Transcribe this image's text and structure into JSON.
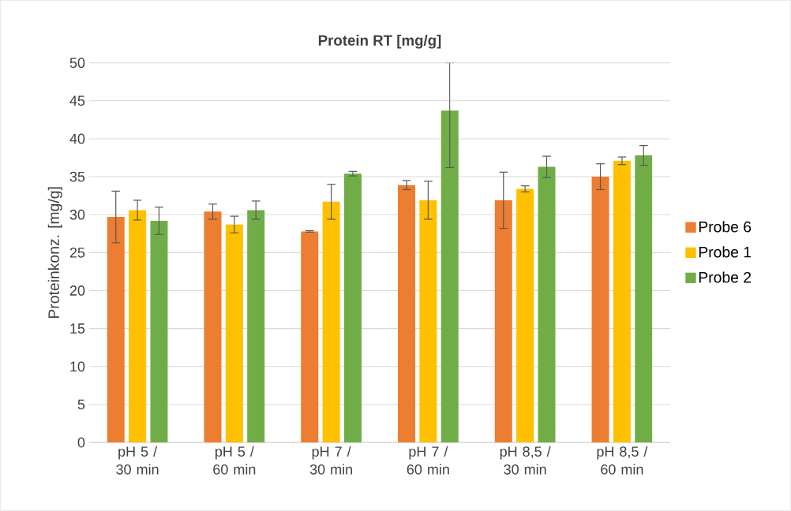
{
  "chart_data": {
    "type": "bar",
    "title": "Protein RT [mg/g]",
    "ylabel": "Proteinkonz. [mg/g]",
    "categories": [
      "pH 5 / 30 min",
      "pH 5 / 60 min",
      "pH 7 / 30 min",
      "pH 7 / 60 min",
      "pH 8,5 / 30 min",
      "pH 8,5 / 60 min"
    ],
    "series": [
      {
        "name": "Probe 6",
        "color": "#ed7d31",
        "values": [
          29.7,
          30.4,
          27.8,
          33.9,
          31.9,
          35.0
        ],
        "errors": [
          3.4,
          1.0,
          0.1,
          0.6,
          3.7,
          1.7
        ]
      },
      {
        "name": "Probe 1",
        "color": "#ffc000",
        "values": [
          30.6,
          28.7,
          31.7,
          31.9,
          33.4,
          37.1
        ],
        "errors": [
          1.3,
          1.1,
          2.3,
          2.5,
          0.4,
          0.5
        ]
      },
      {
        "name": "Probe 2",
        "color": "#70ad47",
        "values": [
          29.2,
          30.6,
          35.4,
          43.7,
          36.3,
          37.8
        ],
        "errors": [
          1.8,
          1.2,
          0.3,
          [
            36.2,
            50
          ],
          1.4,
          1.3
        ]
      }
    ],
    "ylim": [
      0,
      50
    ],
    "yticks": [
      0,
      5,
      10,
      15,
      20,
      25,
      30,
      35,
      40,
      45,
      50
    ],
    "grid": "y",
    "legend": "right"
  }
}
